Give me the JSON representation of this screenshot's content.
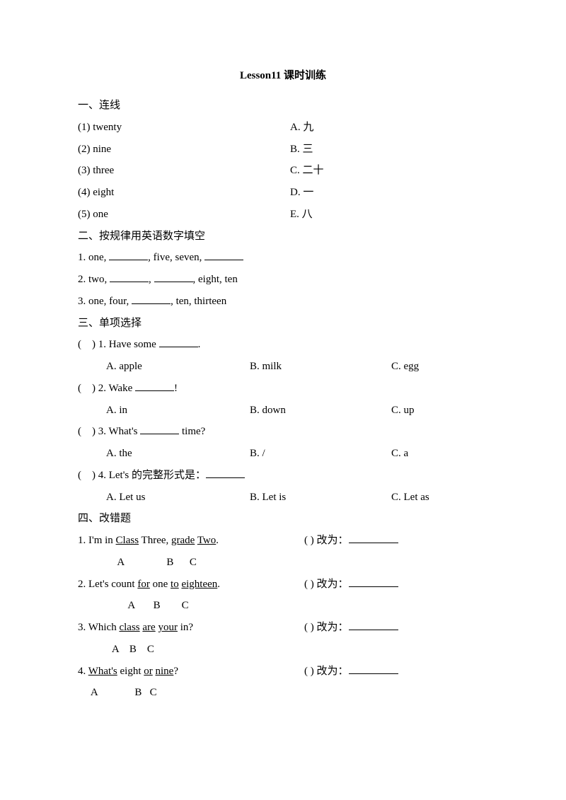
{
  "title": "Lesson11  课时训练",
  "s1": {
    "heading": "一、连线",
    "rows": [
      {
        "l": "(1) twenty",
        "r": "A.  九"
      },
      {
        "l": "(2) nine",
        "r": "B.  三"
      },
      {
        "l": "(3) three",
        "r": "C.  二十"
      },
      {
        "l": "(4) eight",
        "r": "D.  一"
      },
      {
        "l": "(5) one",
        "r": "E.  八"
      }
    ]
  },
  "s2": {
    "heading": "二、按规律用英语数字填空",
    "q1a": "1. one, ",
    "q1b": ", five, seven, ",
    "q2a": "2. two, ",
    "q2b": ", ",
    "q2c": ", eight, ten",
    "q3a": "3. one, four, ",
    "q3b": ", ten, thirteen"
  },
  "s3": {
    "heading": "三、单项选择",
    "q1": {
      "stem": "(    ) 1. Have some ",
      "tail": ".",
      "a": "A. apple",
      "b": "B. milk",
      "c": "C. egg"
    },
    "q2": {
      "stem": "(    ) 2. Wake ",
      "tail": "!",
      "a": "A. in",
      "b": "B. down",
      "c": "C. up"
    },
    "q3": {
      "stem": "(    ) 3. What's ",
      "tail": " time?",
      "a": "A. the",
      "b": "B. /",
      "c": "C. a"
    },
    "q4": {
      "stem": "(    ) 4. Let's 的完整形式是：",
      "a": "A. Let us",
      "b": "B. Let is",
      "c": "C. Let as"
    }
  },
  "s4": {
    "heading": "四、改错题",
    "change": "(     )  改为：",
    "q1": {
      "p1": "1. I'm in ",
      "u1": "Class",
      "p2": " Three, ",
      "u2": "grade",
      "p3": " ",
      "u3": "Two",
      "p4": ".",
      "abc": "               A                B      C"
    },
    "q2": {
      "p1": "2. Let's count ",
      "u1": "for",
      "p2": " one ",
      "u2": "to",
      "p3": " ",
      "u3": "eighteen",
      "p4": ".",
      "abc": "                   A       B        C"
    },
    "q3": {
      "p1": "3. Which ",
      "u1": "class",
      "p2": " ",
      "u2": "are",
      "p3": " ",
      "u3": "your",
      "p4": " in?",
      "abc": "             A    B    C"
    },
    "q4": {
      "p1": "4. ",
      "u1": "What's",
      "p2": " eight ",
      "u2": "or",
      "p3": " ",
      "u3": "nine",
      "p4": "?",
      "abc": "     A              B   C"
    }
  }
}
